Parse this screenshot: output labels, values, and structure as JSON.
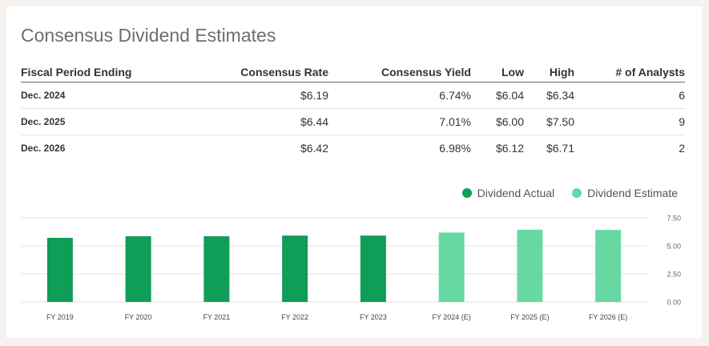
{
  "title": "Consensus Dividend Estimates",
  "table": {
    "headers": [
      "Fiscal Period Ending",
      "Consensus Rate",
      "Consensus Yield",
      "Low",
      "High",
      "# of Analysts"
    ],
    "rows": [
      [
        "Dec. 2024",
        "$6.19",
        "6.74%",
        "$6.04",
        "$6.34",
        "6"
      ],
      [
        "Dec. 2025",
        "$6.44",
        "7.01%",
        "$6.00",
        "$7.50",
        "9"
      ],
      [
        "Dec. 2026",
        "$6.42",
        "6.98%",
        "$6.12",
        "$6.71",
        "2"
      ]
    ]
  },
  "legend": {
    "actual_label": "Dividend Actual",
    "estimate_label": "Dividend Estimate"
  },
  "colors": {
    "actual": "#0f9d58",
    "estimate": "#66d9a2",
    "grid": "#e0e0e0",
    "axis_text": "#666666"
  },
  "chart_data": {
    "type": "bar",
    "categories": [
      "FY 2019",
      "FY 2020",
      "FY 2021",
      "FY 2022",
      "FY 2023",
      "FY 2024 (E)",
      "FY 2025 (E)",
      "FY 2026 (E)"
    ],
    "series": [
      {
        "name": "Dividend Actual",
        "values": [
          5.72,
          5.86,
          5.86,
          5.92,
          5.92,
          null,
          null,
          null
        ]
      },
      {
        "name": "Dividend Estimate",
        "values": [
          null,
          null,
          null,
          null,
          null,
          6.19,
          6.44,
          6.42
        ]
      }
    ],
    "ylim": [
      0,
      7.5
    ],
    "yticks": [
      "0.00",
      "2.50",
      "5.00",
      "7.50"
    ],
    "ytick_values": [
      0,
      2.5,
      5,
      7.5
    ],
    "grid": true,
    "legend_position": "top-right"
  }
}
